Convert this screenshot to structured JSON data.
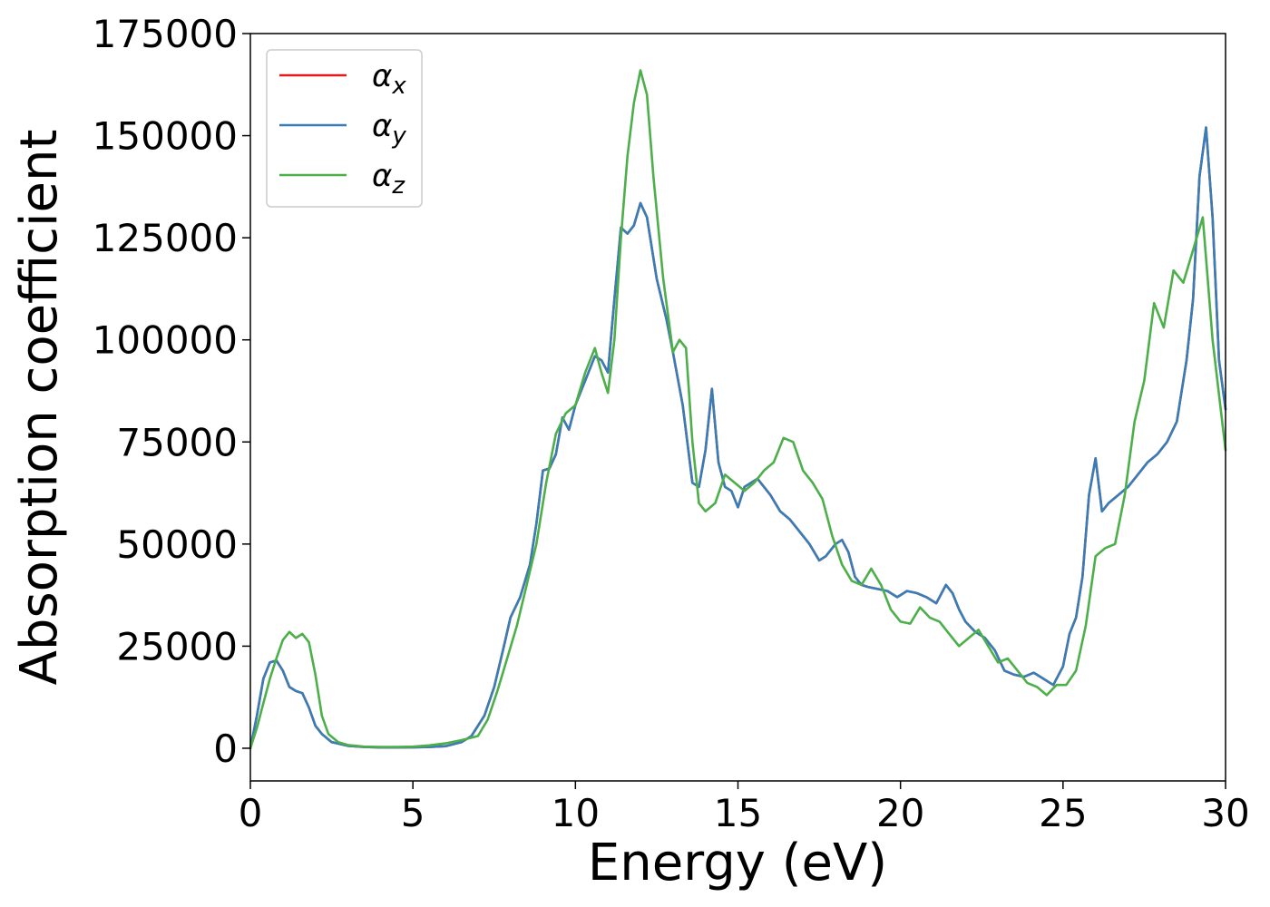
{
  "chart_data": {
    "type": "line",
    "xlabel": "Energy (eV)",
    "ylabel": "Absorption coefficient",
    "xlim": [
      0,
      30
    ],
    "ylim": [
      -8000,
      175000
    ],
    "xticks": [
      0,
      5,
      10,
      15,
      20,
      25,
      30
    ],
    "yticks": [
      0,
      25000,
      50000,
      75000,
      100000,
      125000,
      150000,
      175000
    ],
    "grid": false,
    "legend_position": "top-left",
    "series": [
      {
        "name": "α",
        "subscript": "x",
        "color": "#e41a1c",
        "x": [
          0,
          0.2,
          0.4,
          0.6,
          0.8,
          1.0,
          1.2,
          1.4,
          1.6,
          1.8,
          2.0,
          2.2,
          2.5,
          3.0,
          3.5,
          4.0,
          4.5,
          5.0,
          5.5,
          6.0,
          6.5,
          6.8,
          7.2,
          7.5,
          7.8,
          8.0,
          8.3,
          8.6,
          8.8,
          9.0,
          9.2,
          9.4,
          9.6,
          9.8,
          10.0,
          10.3,
          10.6,
          10.8,
          11.0,
          11.2,
          11.4,
          11.6,
          11.8,
          12.0,
          12.2,
          12.5,
          12.8,
          13.0,
          13.3,
          13.6,
          13.8,
          14.0,
          14.2,
          14.4,
          14.6,
          14.8,
          15.0,
          15.2,
          15.4,
          15.6,
          15.8,
          16.0,
          16.3,
          16.6,
          16.9,
          17.2,
          17.5,
          17.7,
          18.0,
          18.2,
          18.4,
          18.6,
          18.8,
          19.0,
          19.3,
          19.6,
          19.9,
          20.2,
          20.5,
          20.8,
          21.1,
          21.4,
          21.6,
          21.8,
          22.0,
          22.3,
          22.6,
          22.9,
          23.2,
          23.5,
          23.8,
          24.1,
          24.4,
          24.7,
          25.0,
          25.2,
          25.4,
          25.6,
          25.8,
          26.0,
          26.2,
          26.4,
          26.7,
          27.0,
          27.3,
          27.6,
          27.9,
          28.2,
          28.5,
          28.8,
          29.0,
          29.2,
          29.4,
          29.6,
          29.8,
          30.0
        ],
        "y": [
          0,
          8000,
          17000,
          21000,
          21500,
          19000,
          15000,
          14000,
          13500,
          10000,
          5500,
          3500,
          1500,
          600,
          300,
          200,
          200,
          250,
          300,
          500,
          1500,
          3000,
          8000,
          15000,
          25000,
          32000,
          37000,
          45000,
          55000,
          68000,
          68500,
          72000,
          81000,
          78000,
          84000,
          90000,
          96000,
          95000,
          92000,
          110000,
          127500,
          126000,
          128000,
          133500,
          130000,
          115000,
          105000,
          97000,
          84000,
          65000,
          64000,
          73000,
          88000,
          70000,
          64000,
          63000,
          59000,
          64000,
          65000,
          66000,
          64000,
          62000,
          58000,
          56000,
          53000,
          50000,
          46000,
          47000,
          50000,
          51000,
          48000,
          42000,
          40000,
          39500,
          39000,
          38500,
          37000,
          38500,
          38000,
          37000,
          35500,
          40000,
          38000,
          34000,
          31000,
          28500,
          27000,
          24000,
          19000,
          18000,
          17500,
          18500,
          17000,
          15500,
          20000,
          28000,
          32000,
          42000,
          62000,
          71000,
          58000,
          60000,
          62000,
          64000,
          67000,
          70000,
          72000,
          75000,
          80000,
          95000,
          110000,
          140000,
          152000,
          130000,
          95000,
          83000
        ]
      },
      {
        "name": "α",
        "subscript": "y",
        "color": "#377eb8",
        "x": [
          0,
          0.2,
          0.4,
          0.6,
          0.8,
          1.0,
          1.2,
          1.4,
          1.6,
          1.8,
          2.0,
          2.2,
          2.5,
          3.0,
          3.5,
          4.0,
          4.5,
          5.0,
          5.5,
          6.0,
          6.5,
          6.8,
          7.2,
          7.5,
          7.8,
          8.0,
          8.3,
          8.6,
          8.8,
          9.0,
          9.2,
          9.4,
          9.6,
          9.8,
          10.0,
          10.3,
          10.6,
          10.8,
          11.0,
          11.2,
          11.4,
          11.6,
          11.8,
          12.0,
          12.2,
          12.5,
          12.8,
          13.0,
          13.3,
          13.6,
          13.8,
          14.0,
          14.2,
          14.4,
          14.6,
          14.8,
          15.0,
          15.2,
          15.4,
          15.6,
          15.8,
          16.0,
          16.3,
          16.6,
          16.9,
          17.2,
          17.5,
          17.7,
          18.0,
          18.2,
          18.4,
          18.6,
          18.8,
          19.0,
          19.3,
          19.6,
          19.9,
          20.2,
          20.5,
          20.8,
          21.1,
          21.4,
          21.6,
          21.8,
          22.0,
          22.3,
          22.6,
          22.9,
          23.2,
          23.5,
          23.8,
          24.1,
          24.4,
          24.7,
          25.0,
          25.2,
          25.4,
          25.6,
          25.8,
          26.0,
          26.2,
          26.4,
          26.7,
          27.0,
          27.3,
          27.6,
          27.9,
          28.2,
          28.5,
          28.8,
          29.0,
          29.2,
          29.4,
          29.6,
          29.8,
          30.0
        ],
        "y": [
          0,
          8000,
          17000,
          21000,
          21500,
          19000,
          15000,
          14000,
          13500,
          10000,
          5500,
          3500,
          1500,
          600,
          300,
          200,
          200,
          250,
          300,
          500,
          1500,
          3000,
          8000,
          15000,
          25000,
          32000,
          37000,
          45000,
          55000,
          68000,
          68500,
          72000,
          81000,
          78000,
          84000,
          90000,
          96000,
          95000,
          92000,
          110000,
          127500,
          126000,
          128000,
          133500,
          130000,
          115000,
          105000,
          97000,
          84000,
          65000,
          64000,
          73000,
          88000,
          70000,
          64000,
          63000,
          59000,
          64000,
          65000,
          66000,
          64000,
          62000,
          58000,
          56000,
          53000,
          50000,
          46000,
          47000,
          50000,
          51000,
          48000,
          42000,
          40000,
          39500,
          39000,
          38500,
          37000,
          38500,
          38000,
          37000,
          35500,
          40000,
          38000,
          34000,
          31000,
          28500,
          27000,
          24000,
          19000,
          18000,
          17500,
          18500,
          17000,
          15500,
          20000,
          28000,
          32000,
          42000,
          62000,
          71000,
          58000,
          60000,
          62000,
          64000,
          67000,
          70000,
          72000,
          75000,
          80000,
          95000,
          110000,
          140000,
          152000,
          130000,
          95000,
          83000
        ]
      },
      {
        "name": "α",
        "subscript": "z",
        "color": "#4daf4a",
        "x": [
          0,
          0.2,
          0.4,
          0.6,
          0.8,
          1.0,
          1.2,
          1.4,
          1.6,
          1.8,
          2.0,
          2.2,
          2.4,
          2.7,
          3.0,
          3.5,
          4.0,
          4.5,
          5.0,
          5.5,
          6.0,
          6.5,
          7.0,
          7.3,
          7.6,
          7.9,
          8.2,
          8.5,
          8.8,
          9.1,
          9.4,
          9.7,
          10.0,
          10.3,
          10.6,
          10.8,
          11.0,
          11.2,
          11.4,
          11.6,
          11.8,
          12.0,
          12.2,
          12.4,
          12.7,
          13.0,
          13.2,
          13.4,
          13.6,
          13.8,
          14.0,
          14.3,
          14.6,
          14.9,
          15.2,
          15.5,
          15.8,
          16.1,
          16.4,
          16.7,
          17.0,
          17.3,
          17.6,
          17.9,
          18.2,
          18.5,
          18.8,
          19.1,
          19.4,
          19.7,
          20.0,
          20.3,
          20.6,
          20.9,
          21.2,
          21.5,
          21.8,
          22.1,
          22.4,
          22.7,
          23.0,
          23.3,
          23.6,
          23.9,
          24.2,
          24.5,
          24.8,
          25.1,
          25.4,
          25.7,
          26.0,
          26.3,
          26.6,
          26.9,
          27.2,
          27.5,
          27.8,
          28.1,
          28.4,
          28.7,
          29.0,
          29.3,
          29.6,
          30.0
        ],
        "y": [
          0,
          5000,
          11000,
          17000,
          22000,
          26500,
          28500,
          27000,
          28000,
          26000,
          18000,
          8000,
          3500,
          1500,
          800,
          400,
          300,
          300,
          400,
          700,
          1200,
          2000,
          3000,
          7000,
          14000,
          22000,
          30000,
          40000,
          50000,
          65000,
          77000,
          82000,
          84000,
          92000,
          98000,
          92000,
          87000,
          100000,
          125000,
          145000,
          158000,
          166000,
          160000,
          140000,
          115000,
          97000,
          100000,
          98000,
          75000,
          60000,
          58000,
          60000,
          67000,
          65000,
          63000,
          65000,
          68000,
          70000,
          76000,
          75000,
          68000,
          65000,
          61000,
          52000,
          45000,
          41000,
          40000,
          44000,
          40000,
          34000,
          31000,
          30500,
          34500,
          32000,
          31000,
          28000,
          25000,
          27000,
          29000,
          25000,
          21000,
          22000,
          19000,
          16000,
          15000,
          13000,
          15500,
          15500,
          19000,
          30000,
          47000,
          49000,
          50000,
          62000,
          80000,
          90000,
          109000,
          103000,
          117000,
          114000,
          122000,
          130000,
          100000,
          73000
        ]
      }
    ]
  }
}
